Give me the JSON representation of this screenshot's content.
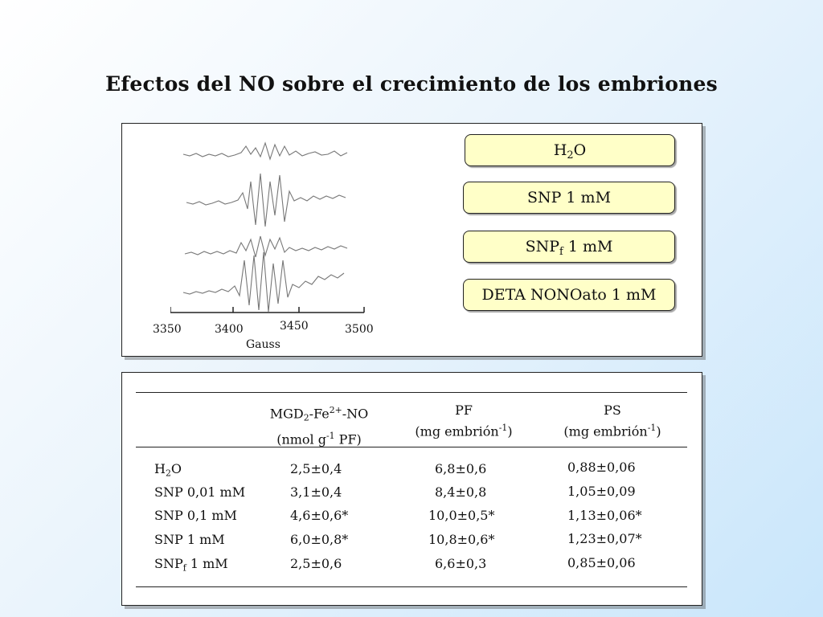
{
  "title": "Efectos del NO sobre el crecimiento de los embriones",
  "spectrum": {
    "x_ticks": [
      "3350",
      "3400",
      "3450",
      "3500"
    ],
    "x_label": "Gauss"
  },
  "legend": [
    {
      "main": "H",
      "sub": "2",
      "rest": "O"
    },
    {
      "main": "SNP 1 mM",
      "sub": "",
      "rest": ""
    },
    {
      "main": "SNP",
      "sub": "f",
      "rest": " 1 mM"
    },
    {
      "main": "DETA NONOato 1 mM",
      "sub": "",
      "rest": ""
    }
  ],
  "table": {
    "col1": {
      "line1_a": "MGD",
      "line1_sub": "2",
      "line1_b": "-Fe",
      "line1_sup": "2+",
      "line1_c": "-NO",
      "line2_a": "(nmol g",
      "line2_sup": "-1",
      "line2_b": " PF)"
    },
    "col2": {
      "line1": "PF",
      "line2_a": "(mg embrión",
      "line2_sup": "-1",
      "line2_b": ")"
    },
    "col3": {
      "line1": "PS",
      "line2_a": "(mg embrión",
      "line2_sup": "-1",
      "line2_b": ")"
    },
    "rows": [
      {
        "label": "H",
        "label_sub": "2",
        "label_rest": "O",
        "mgd": "2,5±0,4",
        "pf": "6,8±0,6",
        "ps": "0,88±0,06"
      },
      {
        "label": "SNP 0,01 mM",
        "label_sub": "",
        "label_rest": "",
        "mgd": "3,1±0,4",
        "pf": "8,4±0,8",
        "ps": "1,05±0,09"
      },
      {
        "label": "SNP 0,1 mM",
        "label_sub": "",
        "label_rest": "",
        "mgd": "4,6±0,6*",
        "pf": "10,0±0,5*",
        "ps": "1,13±0,06*"
      },
      {
        "label": "SNP 1 mM",
        "label_sub": "",
        "label_rest": "",
        "mgd": "6,0±0,8*",
        "pf": "10,8±0,6*",
        "ps": "1,23±0,07*"
      },
      {
        "label": "SNP",
        "label_sub": "f",
        "label_rest": " 1 mM",
        "mgd": "2,5±0,6",
        "pf": "6,6±0,3",
        "ps": "0,85±0,06"
      }
    ]
  }
}
